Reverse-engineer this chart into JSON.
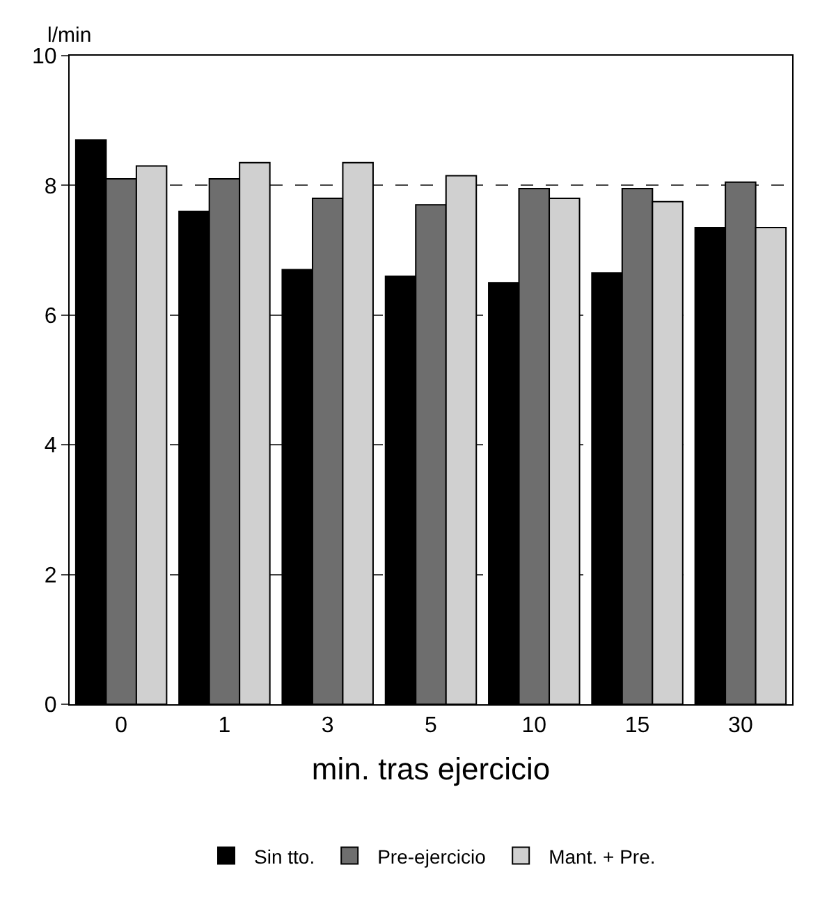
{
  "chart_data": {
    "type": "bar",
    "ylabel": "l/min",
    "xlabel": "min. tras ejercicio",
    "categories": [
      "0",
      "1",
      "3",
      "5",
      "10",
      "15",
      "30"
    ],
    "series": [
      {
        "name": "Sin tto.",
        "color": "#000000",
        "values": [
          8.7,
          7.6,
          6.7,
          6.6,
          6.5,
          6.65,
          7.35
        ]
      },
      {
        "name": "Pre-ejercicio",
        "color": "#6e6e6e",
        "values": [
          8.1,
          8.1,
          7.8,
          7.7,
          7.95,
          7.95,
          8.05
        ]
      },
      {
        "name": "Mant. + Pre.",
        "color": "#d0d0d0",
        "values": [
          8.3,
          8.35,
          8.35,
          8.15,
          7.8,
          7.75,
          7.35
        ]
      }
    ],
    "ylim": [
      0,
      10
    ],
    "yticks": [
      0,
      2,
      4,
      6,
      8,
      10
    ],
    "grid": "y",
    "legend": "bottom"
  }
}
